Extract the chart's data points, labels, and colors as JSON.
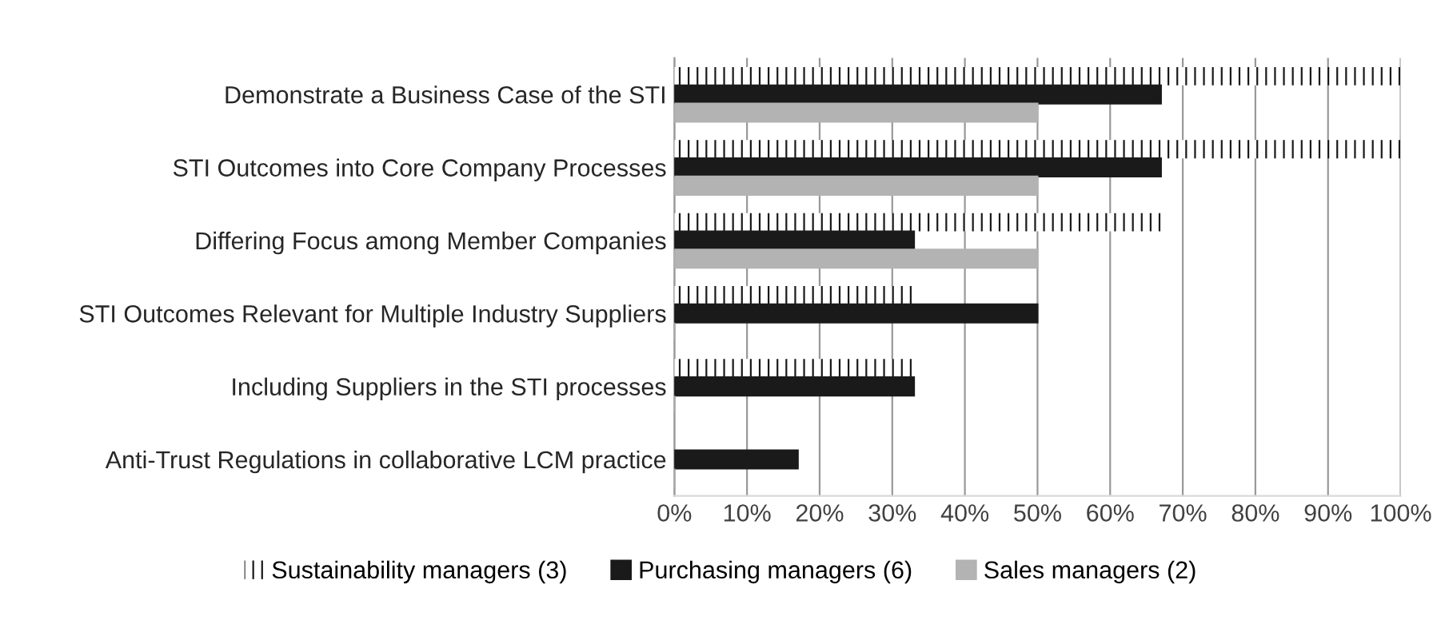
{
  "chart_data": {
    "type": "bar",
    "orientation": "horizontal",
    "categories": [
      "Demonstrate a Business Case of the STI",
      "STI Outcomes into Core Company Processes",
      "Differing Focus among Member Companies",
      "STI Outcomes Relevant for Multiple Industry Suppliers",
      "Including Suppliers in the STI processes",
      "Anti-Trust Regulations in collaborative LCM practice"
    ],
    "series": [
      {
        "name": "Sustainability managers (3)",
        "color": "#ffffff",
        "values": [
          100,
          100,
          67,
          33,
          33,
          0
        ]
      },
      {
        "name": "Purchasing managers (6)",
        "color": "#1a1a1a",
        "values": [
          67,
          67,
          33,
          50,
          33,
          17
        ]
      },
      {
        "name": "Sales managers (2)",
        "color": "#b3b3b3",
        "values": [
          50,
          50,
          50,
          0,
          0,
          0
        ]
      }
    ],
    "xlim": [
      0,
      100
    ],
    "xticks": [
      {
        "value": 0,
        "label": "0%"
      },
      {
        "value": 10,
        "label": "10%"
      },
      {
        "value": 20,
        "label": "20%"
      },
      {
        "value": 30,
        "label": "30%"
      },
      {
        "value": 40,
        "label": "40%"
      },
      {
        "value": 50,
        "label": "50%"
      },
      {
        "value": 60,
        "label": "60%"
      },
      {
        "value": 70,
        "label": "70%"
      },
      {
        "value": 80,
        "label": "80%"
      },
      {
        "value": 90,
        "label": "90%"
      },
      {
        "value": 100,
        "label": "100%"
      }
    ],
    "grid": "x",
    "legend": "bottom"
  }
}
